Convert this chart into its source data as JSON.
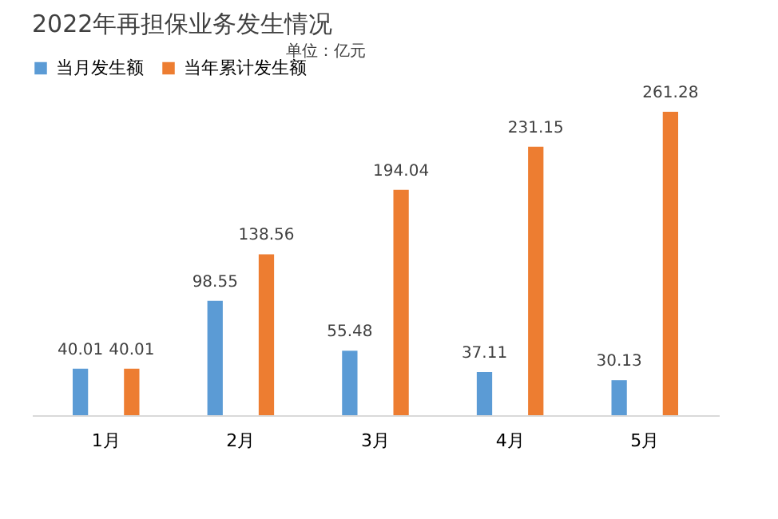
{
  "chart_data": {
    "type": "bar",
    "title": "2022年再担保业务发生情况",
    "annotations": [
      "单位：亿元"
    ],
    "categories": [
      "1月",
      "2月",
      "3月",
      "4月",
      "5月"
    ],
    "series": [
      {
        "name": "当月发生额",
        "color": "#5b9bd5",
        "values": [
          40.01,
          98.55,
          55.48,
          37.11,
          30.13
        ]
      },
      {
        "name": "当年累计发生额",
        "color": "#ed7d31",
        "values": [
          40.01,
          138.56,
          194.04,
          231.15,
          261.28
        ]
      }
    ],
    "data_labels": true,
    "legend": "top left",
    "grid": false
  }
}
